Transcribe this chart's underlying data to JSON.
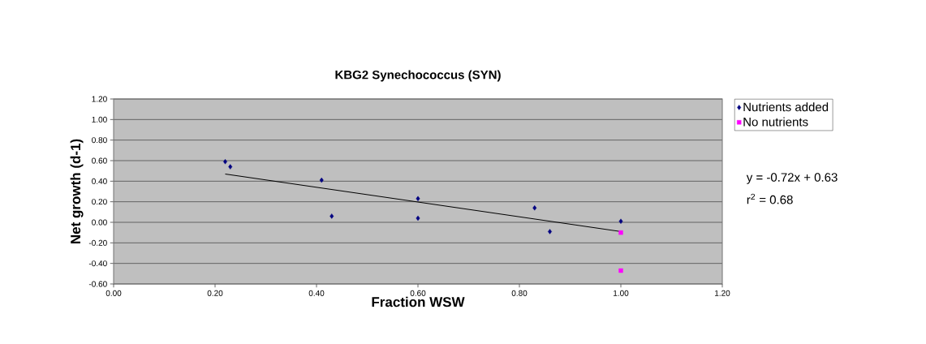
{
  "chart_data": {
    "type": "scatter",
    "title": "KBG2 Synechococcus (SYN)",
    "xlabel": "Fraction WSW",
    "ylabel": "Net growth (d-1)",
    "series": [
      {
        "name": "Nutrients added",
        "color": "#000080",
        "marker": "diamond",
        "x": [
          0.22,
          0.23,
          0.41,
          0.43,
          0.6,
          0.6,
          0.83,
          0.86,
          1.0
        ],
        "values": [
          0.59,
          0.54,
          0.41,
          0.06,
          0.04,
          0.23,
          0.14,
          -0.09,
          0.01
        ]
      },
      {
        "name": "No nutrients",
        "color": "#ff00ff",
        "marker": "square",
        "x": [
          1.0,
          1.0
        ],
        "values": [
          -0.1,
          -0.47
        ]
      },
      {
        "type": "line",
        "color": "#000000",
        "marker": "none",
        "x": [
          0.22,
          1.0
        ],
        "values": [
          0.47,
          -0.09
        ]
      }
    ],
    "xlim": [
      0,
      1.2
    ],
    "ylim": [
      -0.6,
      1.2
    ],
    "xticks": [
      {
        "value": 0,
        "label": "0.00"
      },
      {
        "value": 0.2,
        "label": "0.20"
      },
      {
        "value": 0.4,
        "label": "0.40"
      },
      {
        "value": 0.6,
        "label": "0.60"
      },
      {
        "value": 0.8,
        "label": "0.80"
      },
      {
        "value": 1.0,
        "label": "1.00"
      },
      {
        "value": 1.2,
        "label": "1.20"
      }
    ],
    "yticks": [
      {
        "value": -0.6,
        "label": "-0.60"
      },
      {
        "value": -0.4,
        "label": "-0.40"
      },
      {
        "value": -0.2,
        "label": "-0.20"
      },
      {
        "value": 0,
        "label": "0.00"
      },
      {
        "value": 0.2,
        "label": "0.20"
      },
      {
        "value": 0.4,
        "label": "0.40"
      },
      {
        "value": 0.6,
        "label": "0.60"
      },
      {
        "value": 0.8,
        "label": "0.80"
      },
      {
        "value": 1.0,
        "label": "1.00"
      },
      {
        "value": 1.2,
        "label": "1.20"
      }
    ],
    "grid": "y",
    "legend": "top right",
    "annotations": [
      "y = -0.72x + 0.63",
      "r$^{2}$ = 0.68"
    ]
  }
}
